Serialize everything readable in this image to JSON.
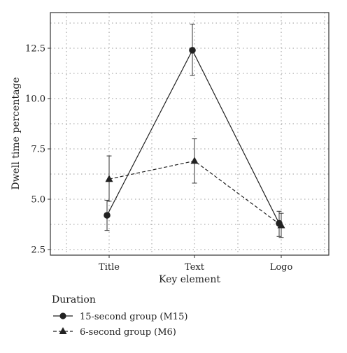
{
  "chart_data": {
    "type": "line",
    "xlabel": "Key element",
    "ylabel": "Dwell time percentage",
    "categories": [
      "Title",
      "Text",
      "Logo"
    ],
    "ylim": [
      2.5,
      13.8
    ],
    "yticks": [
      "2.5",
      "5.0",
      "7.5",
      "10.0",
      "12.5"
    ],
    "grid": true,
    "legend": {
      "title": "Duration",
      "placement": "bottom-left"
    },
    "series": [
      {
        "name": "15-second group (M15)",
        "marker": "circle",
        "line_style": "solid",
        "values": [
          4.2,
          12.4,
          3.8
        ],
        "err_low": [
          3.45,
          11.15,
          3.15
        ],
        "err_high": [
          4.95,
          13.7,
          4.4
        ]
      },
      {
        "name": "6-second group (M6)",
        "marker": "triangle",
        "line_style": "dashed",
        "values": [
          6.0,
          6.9,
          3.7
        ],
        "err_low": [
          4.9,
          5.8,
          3.1
        ],
        "err_high": [
          7.15,
          8.0,
          4.3
        ]
      }
    ]
  }
}
